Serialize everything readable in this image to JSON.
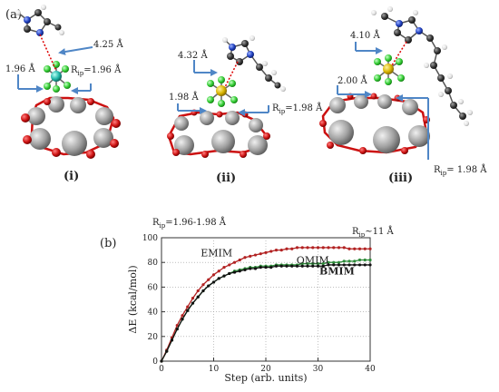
{
  "panel_a": {
    "label": "(a)",
    "structures": [
      {
        "roman": "(i)",
        "distance": "4.25 Å",
        "metal_label": "1.96 Å",
        "rip_label": "R",
        "rip_sub": "ip",
        "rip_value": "=1.96 Å"
      },
      {
        "roman": "(ii)",
        "distance": "4.32 Å",
        "metal_label": "1.98 Å",
        "rip_label": "R",
        "rip_sub": "ip",
        "rip_value": "=1.98 Å"
      },
      {
        "roman": "(iii)",
        "distance": "4.10 Å",
        "metal_label": "2.00 Å",
        "rip_label": "R",
        "rip_sub": "ip",
        "rip_value": "= 1.98 Å"
      }
    ]
  },
  "panel_b": {
    "label": "(b)",
    "annot_left": {
      "main": "R",
      "sub": "ip",
      "rest": "=1.96-1.98 Å"
    },
    "annot_right": {
      "main": "R",
      "sub": "ip",
      "rest": "~11 Å"
    }
  },
  "colors": {
    "EMIM": "#b22222",
    "OMIM": "#2e8b3a",
    "BMIM": "#111111",
    "arrow": "#4f86c6",
    "atom_gray": "#9a9a9a",
    "atom_red": "#cc1111",
    "atom_green": "#33cc33",
    "atom_cyan": "#1fb5a8",
    "atom_yellow": "#d9b400",
    "atom_dark": "#333333",
    "atom_blue": "#1f3fbf"
  },
  "chart_data": {
    "type": "line",
    "xlabel": "Step (arb. units)",
    "ylabel": "ΔE (kcal/mol)",
    "xlim": [
      0,
      40
    ],
    "ylim": [
      0,
      100
    ],
    "xticks": [
      0,
      10,
      20,
      30,
      40
    ],
    "yticks": [
      0,
      20,
      40,
      60,
      80,
      100
    ],
    "x": [
      0,
      1,
      2,
      3,
      4,
      5,
      6,
      7,
      8,
      9,
      10,
      11,
      12,
      13,
      14,
      15,
      16,
      17,
      18,
      19,
      20,
      21,
      22,
      23,
      24,
      25,
      26,
      27,
      28,
      29,
      30,
      31,
      32,
      33,
      34,
      35,
      36,
      37,
      38,
      39,
      40
    ],
    "series": [
      {
        "name": "EMIM",
        "values": [
          0,
          9,
          19,
          29,
          37,
          44,
          51,
          57,
          62,
          66,
          70,
          73,
          76,
          78,
          80,
          82,
          84,
          85,
          86,
          87,
          88,
          89,
          90,
          90,
          91,
          91,
          92,
          92,
          92,
          92,
          92,
          92,
          92,
          92,
          92,
          92,
          91,
          91,
          91,
          91,
          91
        ]
      },
      {
        "name": "OMIM",
        "values": [
          0,
          8,
          17,
          26,
          34,
          41,
          47,
          52,
          57,
          61,
          64,
          67,
          69,
          71,
          73,
          74,
          75,
          76,
          76,
          77,
          77,
          77,
          78,
          78,
          78,
          78,
          78,
          79,
          79,
          79,
          79,
          79,
          80,
          80,
          80,
          81,
          81,
          81,
          82,
          82,
          82
        ]
      },
      {
        "name": "BMIM",
        "values": [
          0,
          8,
          17,
          26,
          34,
          41,
          47,
          52,
          57,
          61,
          64,
          67,
          69,
          71,
          72,
          73,
          74,
          75,
          75,
          76,
          76,
          76,
          77,
          77,
          77,
          77,
          77,
          77,
          77,
          77,
          77,
          77,
          78,
          78,
          78,
          78,
          78,
          78,
          78,
          78,
          78
        ]
      }
    ]
  }
}
